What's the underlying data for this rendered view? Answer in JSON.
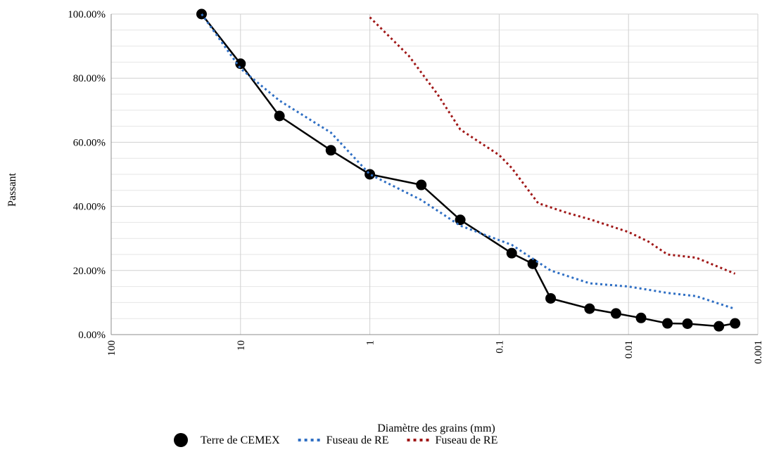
{
  "chart_data": {
    "type": "scatter",
    "title": "",
    "xlabel": "Diamètre des grains (mm)",
    "ylabel": "Passant",
    "x_scale": "log",
    "x_reversed": true,
    "xlim": [
      100,
      0.001
    ],
    "ylim": [
      0,
      1
    ],
    "x_ticks": [
      100,
      10,
      1,
      0.1,
      0.01,
      0.001
    ],
    "x_tick_labels": [
      "100",
      "10",
      "1",
      "0.1",
      "0.01",
      "0.001"
    ],
    "y_ticks": [
      0,
      0.2,
      0.4,
      0.6,
      0.8,
      1.0
    ],
    "y_tick_labels": [
      "0.00%",
      "20.00%",
      "40.00%",
      "60.00%",
      "80.00%",
      "100.00%"
    ],
    "grid": true,
    "legend_position": "bottom",
    "series": [
      {
        "name": "Terre de CEMEX",
        "color": "#000000",
        "style": "line-markers",
        "x": [
          20,
          10,
          5,
          2,
          1,
          0.4,
          0.2,
          0.08,
          0.055,
          0.04,
          0.02,
          0.0125,
          0.008,
          0.005,
          0.0035,
          0.002,
          0.0015
        ],
        "y": [
          1.0,
          0.845,
          0.682,
          0.575,
          0.5,
          0.467,
          0.358,
          0.254,
          0.221,
          0.113,
          0.081,
          0.066,
          0.052,
          0.035,
          0.034,
          0.026,
          0.035
        ]
      },
      {
        "name": "Fuseau de RE",
        "color": "#2f6fc4",
        "style": "dotted",
        "x": [
          20,
          10,
          5,
          2,
          1,
          0.4,
          0.2,
          0.08,
          0.04,
          0.02,
          0.01,
          0.005,
          0.003,
          0.0015
        ],
        "y": [
          1.0,
          0.83,
          0.73,
          0.63,
          0.5,
          0.42,
          0.34,
          0.28,
          0.2,
          0.16,
          0.15,
          0.13,
          0.12,
          0.08
        ]
      },
      {
        "name": "Fuseau de RE",
        "color": "#a01818",
        "style": "dotted",
        "x": [
          1,
          0.5,
          0.3,
          0.2,
          0.1,
          0.08,
          0.05,
          0.03,
          0.02,
          0.01,
          0.007,
          0.005,
          0.003,
          0.0015
        ],
        "y": [
          0.99,
          0.87,
          0.75,
          0.64,
          0.56,
          0.52,
          0.41,
          0.38,
          0.36,
          0.32,
          0.29,
          0.25,
          0.24,
          0.19
        ]
      }
    ]
  }
}
